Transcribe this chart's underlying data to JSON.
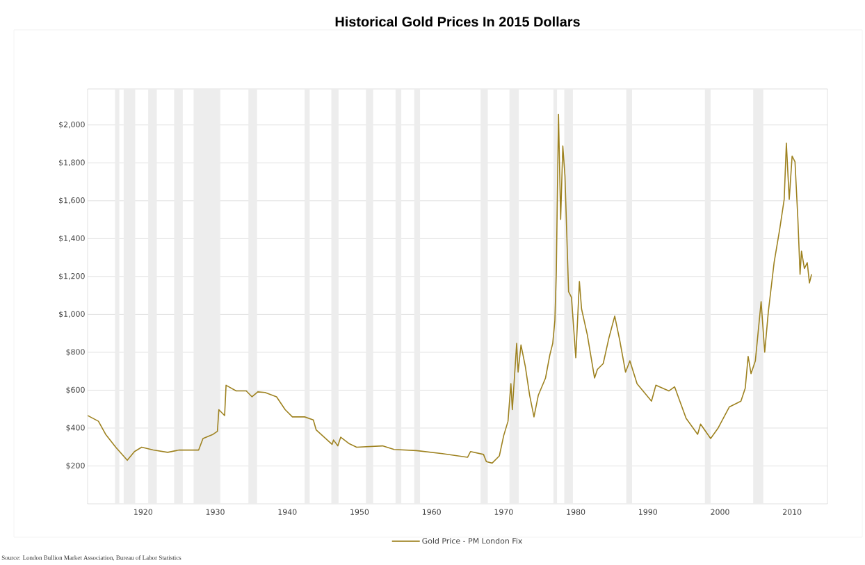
{
  "chart_data": {
    "type": "line",
    "title": "Historical Gold Prices In 2015 Dollars",
    "x": [
      1912.3,
      1913.8,
      1914.8,
      1916.2,
      1917.8,
      1918.8,
      1919.8,
      1921.4,
      1923.4,
      1925.0,
      1927.7,
      1928.3,
      1929.7,
      1930.3,
      1930.5,
      1931.3,
      1931.5,
      1932.9,
      1934.3,
      1935.1,
      1935.9,
      1936.9,
      1938.5,
      1939.7,
      1940.7,
      1942.4,
      1943.6,
      1944.0,
      1946.2,
      1946.4,
      1947.0,
      1947.4,
      1948.6,
      1949.6,
      1953.2,
      1954.8,
      1957.9,
      1961.5,
      1965.0,
      1965.4,
      1967.2,
      1967.6,
      1968.4,
      1969.4,
      1970.0,
      1970.6,
      1971.0,
      1971.2,
      1971.8,
      1972.0,
      1972.4,
      1973.0,
      1973.6,
      1974.2,
      1974.8,
      1975.8,
      1976.4,
      1976.8,
      1977.1,
      1977.3,
      1977.6,
      1977.9,
      1978.2,
      1978.5,
      1979.0,
      1979.4,
      1980.0,
      1980.5,
      1980.8,
      1981.6,
      1982.6,
      1983.0,
      1983.8,
      1984.6,
      1985.4,
      1986.1,
      1986.9,
      1987.5,
      1988.5,
      1990.5,
      1991.1,
      1992.9,
      1993.7,
      1995.3,
      1996.9,
      1997.3,
      1998.7,
      1999.7,
      2001.3,
      2002.9,
      2003.5,
      2003.9,
      2004.3,
      2004.9,
      2005.7,
      2006.2,
      2006.7,
      2007.5,
      2008.3,
      2008.9,
      2009.2,
      2009.6,
      2010.0,
      2010.4,
      2010.8,
      2011.1,
      2011.3,
      2011.7,
      2012.1,
      2012.4,
      2012.7
    ],
    "series": [
      {
        "name": "Gold Price - PM London Fix",
        "color": "#9e8220",
        "values": [
          466,
          436,
          367,
          299,
          230,
          276,
          299,
          284,
          272,
          284,
          284,
          345,
          367,
          383,
          497,
          466,
          626,
          596,
          596,
          565,
          591,
          588,
          565,
          497,
          459,
          459,
          443,
          390,
          314,
          337,
          306,
          352,
          317,
          299,
          306,
          287,
          281,
          265,
          246,
          276,
          261,
          223,
          215,
          253,
          360,
          436,
          634,
          497,
          847,
          695,
          839,
          725,
          573,
          459,
          573,
          664,
          786,
          847,
          968,
          1227,
          2056,
          1501,
          1889,
          1729,
          1120,
          1090,
          771,
          1174,
          1029,
          892,
          664,
          710,
          740,
          877,
          991,
          862,
          695,
          755,
          634,
          542,
          626,
          596,
          618,
          451,
          367,
          421,
          345,
          398,
          512,
          542,
          611,
          778,
          687,
          755,
          1067,
          801,
          1014,
          1273,
          1455,
          1607,
          1904,
          1607,
          1836,
          1805,
          1501,
          1212,
          1334,
          1242,
          1273,
          1166,
          1212
        ]
      }
    ],
    "xlim": [
      1912.3,
      2014.9
    ],
    "ylim": [
      0,
      2190
    ],
    "xticks": [
      1920,
      1930,
      1940,
      1950,
      1960,
      1970,
      1980,
      1990,
      2000,
      2010
    ],
    "yticks": [
      {
        "value": 200,
        "label": "$200"
      },
      {
        "value": 400,
        "label": "$400"
      },
      {
        "value": 600,
        "label": "$600"
      },
      {
        "value": 800,
        "label": "$800"
      },
      {
        "value": 1000,
        "label": "$1,000"
      },
      {
        "value": 1200,
        "label": "$1,200"
      },
      {
        "value": 1400,
        "label": "$1,400"
      },
      {
        "value": 1600,
        "label": "$1,600"
      },
      {
        "value": 1800,
        "label": "$1,800"
      },
      {
        "value": 2000,
        "label": "$2,000"
      }
    ],
    "grid": "y",
    "legend": "bottom",
    "marker": "none",
    "line_style": "solid",
    "bands": [
      {
        "axis": "x",
        "from": 1916.1,
        "to": 1916.7,
        "color": "#ededed"
      },
      {
        "axis": "x",
        "from": 1917.3,
        "to": 1918.9,
        "color": "#ededed"
      },
      {
        "axis": "x",
        "from": 1920.7,
        "to": 1921.9,
        "color": "#ededed"
      },
      {
        "axis": "x",
        "from": 1924.3,
        "to": 1925.5,
        "color": "#ededed"
      },
      {
        "axis": "x",
        "from": 1927.0,
        "to": 1930.7,
        "color": "#ededed"
      },
      {
        "axis": "x",
        "from": 1934.6,
        "to": 1935.8,
        "color": "#ededed"
      },
      {
        "axis": "x",
        "from": 1942.4,
        "to": 1943.1,
        "color": "#ededed"
      },
      {
        "axis": "x",
        "from": 1946.1,
        "to": 1947.1,
        "color": "#ededed"
      },
      {
        "axis": "x",
        "from": 1950.9,
        "to": 1951.9,
        "color": "#ededed"
      },
      {
        "axis": "x",
        "from": 1955.0,
        "to": 1955.8,
        "color": "#ededed"
      },
      {
        "axis": "x",
        "from": 1957.6,
        "to": 1958.4,
        "color": "#ededed"
      },
      {
        "axis": "x",
        "from": 1966.8,
        "to": 1967.8,
        "color": "#ededed"
      },
      {
        "axis": "x",
        "from": 1970.8,
        "to": 1972.1,
        "color": "#ededed"
      },
      {
        "axis": "x",
        "from": 1976.9,
        "to": 1977.4,
        "color": "#ededed"
      },
      {
        "axis": "x",
        "from": 1978.4,
        "to": 1979.6,
        "color": "#ededed"
      },
      {
        "axis": "x",
        "from": 1987.0,
        "to": 1987.8,
        "color": "#ededed"
      },
      {
        "axis": "x",
        "from": 1997.9,
        "to": 1998.7,
        "color": "#ededed"
      },
      {
        "axis": "x",
        "from": 2004.6,
        "to": 2006.0,
        "color": "#ededed"
      }
    ],
    "annotations": [
      "Source: London Bullion Market Association, Bureau of Labor Statistics"
    ]
  }
}
